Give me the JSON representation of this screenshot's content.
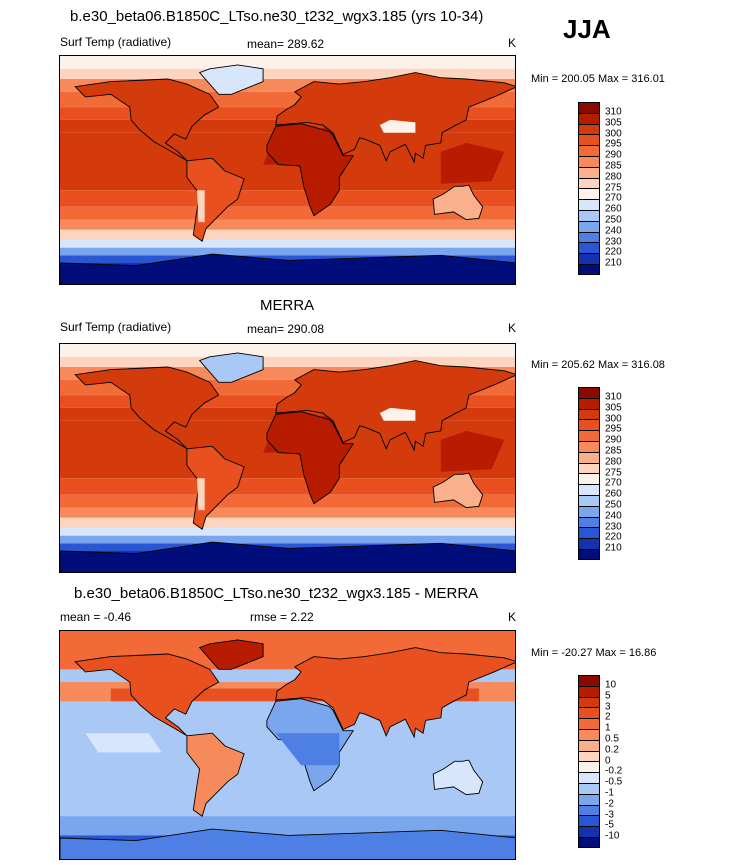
{
  "season": "JJA",
  "panels": [
    {
      "title": "b.e30_beta06.B1850C_LTso.ne30_t232_wgx3.185 (yrs 10-34)",
      "field": "Surf Temp (radiative)",
      "stat": "mean= 289.62",
      "units": "K",
      "minmax": "Min = 200.05 Max = 316.01"
    },
    {
      "title": "MERRA",
      "field": "Surf Temp (radiative)",
      "stat": "mean= 290.08",
      "units": "K",
      "minmax": "Min = 205.62 Max = 316.08"
    },
    {
      "title": "b.e30_beta06.B1850C_LTso.ne30_t232_wgx3.185 - MERRA",
      "field": "mean =  -0.46",
      "stat": "rmse =   2.22",
      "units": "K",
      "minmax": "Min = -20.27 Max =  16.86"
    }
  ],
  "colorbars": {
    "abs": {
      "labels": [
        "310",
        "305",
        "300",
        "295",
        "290",
        "285",
        "280",
        "275",
        "270",
        "260",
        "250",
        "240",
        "230",
        "220",
        "210"
      ],
      "colors": [
        "#8b0a00",
        "#b71c00",
        "#d43b0c",
        "#e8501f",
        "#f26a38",
        "#f78a5a",
        "#fbb08d",
        "#fdd5bf",
        "#fdf2ea",
        "#d8e6fb",
        "#a9c8f5",
        "#7aa6ee",
        "#4d7fe4",
        "#2a56d4",
        "#1432b0",
        "#000d7a"
      ]
    },
    "diff": {
      "labels": [
        "10",
        "5",
        "3",
        "2",
        "1",
        "0.5",
        "0.2",
        "0",
        "-0.2",
        "-0.5",
        "-1",
        "-2",
        "-3",
        "-5",
        "-10"
      ],
      "colors": [
        "#8b0a00",
        "#b71c00",
        "#d43b0c",
        "#e8501f",
        "#f26a38",
        "#f78a5a",
        "#fbb08d",
        "#fdd5bf",
        "#fdf2ea",
        "#d8e6fb",
        "#a9c8f5",
        "#7aa6ee",
        "#4d7fe4",
        "#2a56d4",
        "#1432b0",
        "#000d7a"
      ]
    }
  },
  "chart_data": [
    {
      "type": "heatmap",
      "title": "b.e30_beta06.B1850C_LTso.ne30_t232_wgx3.185 (yrs 10-34)",
      "variable": "Surf Temp (radiative)",
      "units": "K",
      "mean": 289.62,
      "min": 200.05,
      "max": 316.01,
      "contour_levels": [
        210,
        220,
        230,
        240,
        250,
        260,
        270,
        275,
        280,
        285,
        290,
        295,
        300,
        305,
        310
      ]
    },
    {
      "type": "heatmap",
      "title": "MERRA",
      "variable": "Surf Temp (radiative)",
      "units": "K",
      "mean": 290.08,
      "min": 205.62,
      "max": 316.08,
      "contour_levels": [
        210,
        220,
        230,
        240,
        250,
        260,
        270,
        275,
        280,
        285,
        290,
        295,
        300,
        305,
        310
      ]
    },
    {
      "type": "heatmap",
      "title": "b.e30_beta06.B1850C_LTso.ne30_t232_wgx3.185 - MERRA",
      "units": "K",
      "mean": -0.46,
      "rmse": 2.22,
      "min": -20.27,
      "max": 16.86,
      "contour_levels": [
        -10,
        -5,
        -3,
        -2,
        -1,
        -0.5,
        -0.2,
        0,
        0.2,
        0.5,
        1,
        2,
        3,
        5,
        10
      ]
    }
  ]
}
